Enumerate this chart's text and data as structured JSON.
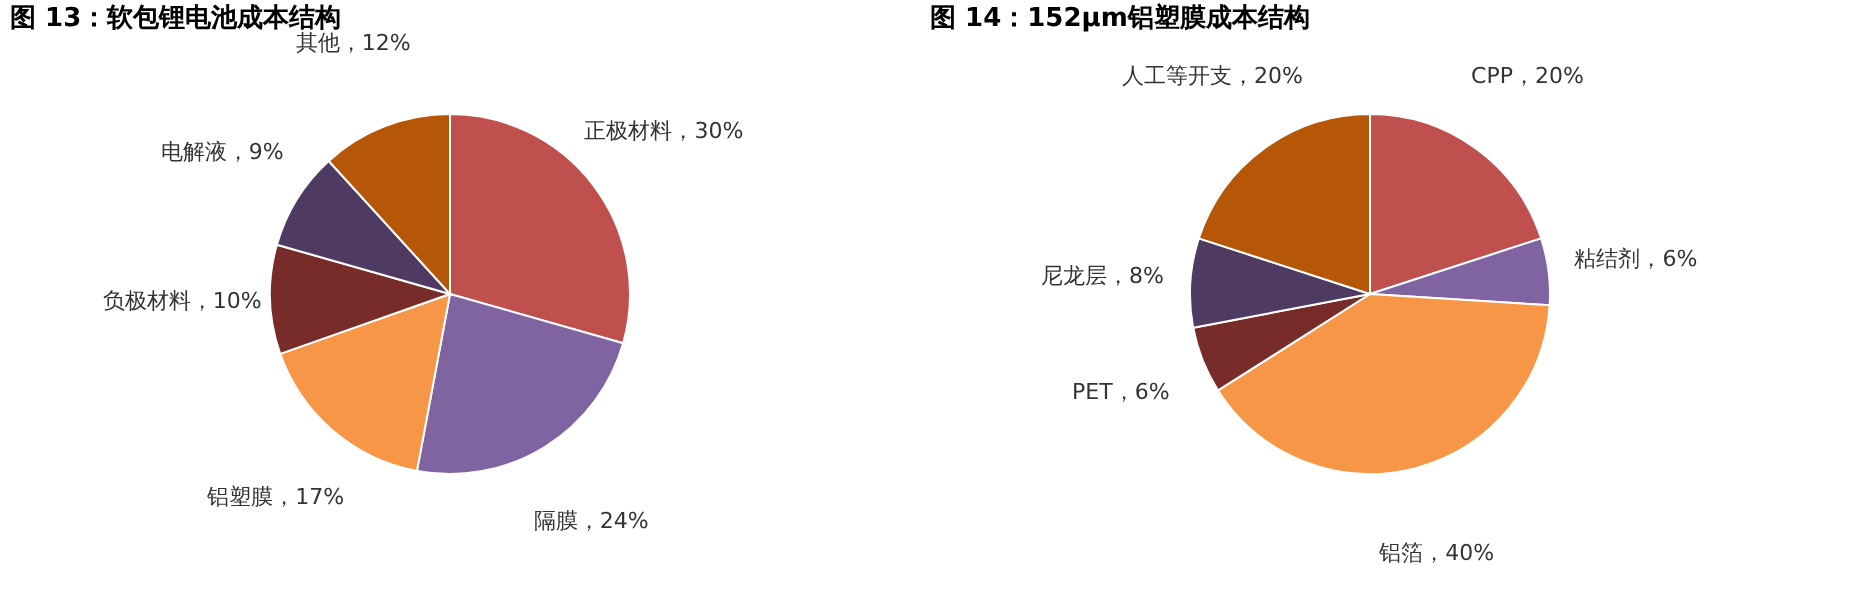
{
  "chart_data": [
    {
      "type": "pie",
      "title": "图 13：软包锂电池成本结构",
      "categories": [
        "正极材料",
        "隔膜",
        "铝塑膜",
        "负极材料",
        "电解液",
        "其他"
      ],
      "values": [
        30,
        24,
        17,
        10,
        9,
        12
      ],
      "value_labels": [
        "30%",
        "24%",
        "17%",
        "10%",
        "9%",
        "12%"
      ],
      "colors": [
        "#c0504d",
        "#8064a2",
        "#f79646",
        "#772c2a",
        "#4f3b62",
        "#b65708"
      ],
      "legend": false
    },
    {
      "type": "pie",
      "title": "图 14：152μm铝塑膜成本结构",
      "categories": [
        "CPP",
        "粘结剂",
        "铝箔",
        "PET",
        "尼龙层",
        "人工等开支"
      ],
      "values": [
        20,
        6,
        40,
        6,
        8,
        20
      ],
      "value_labels": [
        "20%",
        "6%",
        "40%",
        "6%",
        "8%",
        "20%"
      ],
      "colors": [
        "#c0504d",
        "#8064a2",
        "#f79646",
        "#772c2a",
        "#4f3b62",
        "#b65708"
      ],
      "legend": false
    }
  ]
}
